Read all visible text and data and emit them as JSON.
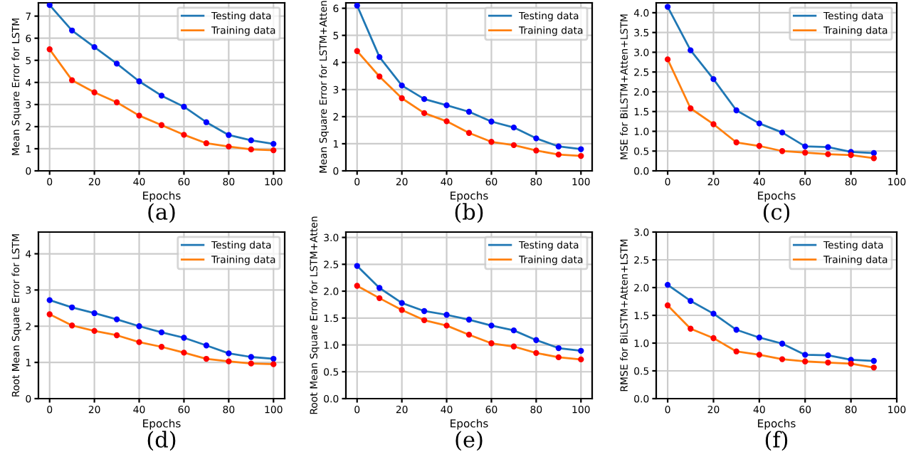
{
  "chart_data": [
    {
      "type": "line",
      "xlabel": "Epochs",
      "ylabel": "Mean Square Error for LSTM",
      "annotations": [
        "(a)"
      ],
      "x": [
        0,
        10,
        20,
        30,
        40,
        50,
        60,
        70,
        80,
        90,
        100
      ],
      "xlim": [
        -5,
        105
      ],
      "xticks": [
        0,
        20,
        40,
        60,
        80,
        100
      ],
      "ylim": [
        0,
        7.6
      ],
      "yticks": [
        0,
        1,
        2,
        3,
        4,
        5,
        6,
        7
      ],
      "grid": true,
      "legend": "top right",
      "marker": "circle",
      "series": [
        {
          "name": "Testing data",
          "color": "#1f77b4",
          "colors": [
            "#0000ff",
            "#0000ff",
            "#0000ff",
            "#0000ff",
            "#0000ff",
            "#0000ff",
            "#0000ff",
            "#0000ff",
            "#0000ff",
            "#0000ff",
            "#0000ff"
          ],
          "values": [
            7.5,
            6.35,
            5.6,
            4.85,
            4.05,
            3.4,
            2.9,
            2.2,
            1.62,
            1.38,
            1.22
          ]
        },
        {
          "name": "Training data",
          "color": "#ff7f0e",
          "colors": [
            "#ff0000",
            "#ff0000",
            "#ff0000",
            "#ff0000",
            "#ff0000",
            "#ff0000",
            "#ff0000",
            "#ff0000",
            "#ff0000",
            "#ff0000",
            "#ff0000"
          ],
          "values": [
            5.5,
            4.1,
            3.55,
            3.1,
            2.5,
            2.07,
            1.63,
            1.25,
            1.1,
            0.97,
            0.93
          ]
        }
      ]
    },
    {
      "type": "line",
      "xlabel": "Epochs",
      "ylabel": "Mean Square Error for LSTM+Atten",
      "annotations": [
        "(b)"
      ],
      "x": [
        0,
        10,
        20,
        30,
        40,
        50,
        60,
        70,
        80,
        90,
        100
      ],
      "xlim": [
        -5,
        105
      ],
      "xticks": [
        0,
        20,
        40,
        60,
        80,
        100
      ],
      "ylim": [
        0,
        6.2
      ],
      "yticks": [
        0,
        1,
        2,
        3,
        4,
        5,
        6
      ],
      "grid": true,
      "legend": "top right",
      "marker": "circle",
      "series": [
        {
          "name": "Testing data",
          "color": "#1f77b4",
          "colors": [
            "#0000ff",
            "#0000ff",
            "#0000ff",
            "#0000ff",
            "#0000ff",
            "#0000ff",
            "#0000ff",
            "#0000ff",
            "#0000ff",
            "#0000ff",
            "#0000ff"
          ],
          "values": [
            6.1,
            4.2,
            3.15,
            2.65,
            2.42,
            2.18,
            1.82,
            1.6,
            1.2,
            0.9,
            0.8
          ]
        },
        {
          "name": "Training data",
          "color": "#ff7f0e",
          "colors": [
            "#ff0000",
            "#ff0000",
            "#ff0000",
            "#ff0000",
            "#ff0000",
            "#ff0000",
            "#ff0000",
            "#ff0000",
            "#ff0000",
            "#ff0000",
            "#ff0000"
          ],
          "values": [
            4.42,
            3.48,
            2.68,
            2.13,
            1.83,
            1.4,
            1.07,
            0.95,
            0.75,
            0.6,
            0.55
          ]
        }
      ]
    },
    {
      "type": "line",
      "xlabel": "Epochs",
      "ylabel": "MSE for BiLSTM+Atten+LSTM",
      "annotations": [
        "(c)"
      ],
      "x": [
        0,
        10,
        20,
        30,
        40,
        50,
        60,
        70,
        80,
        90
      ],
      "xlim": [
        -5,
        100
      ],
      "xticks": [
        0,
        20,
        40,
        60,
        80,
        100
      ],
      "ylim": [
        0,
        4.25
      ],
      "yticks": [
        {
          "value": 0,
          "label": "0.0"
        },
        0.5,
        {
          "value": 1,
          "label": "1.0"
        },
        1.5,
        {
          "value": 2,
          "label": "2.0"
        },
        2.5,
        {
          "value": 3,
          "label": "3.0"
        },
        3.5,
        {
          "value": 4,
          "label": "4.0"
        }
      ],
      "grid": true,
      "legend": "top right",
      "marker": "circle",
      "series": [
        {
          "name": "Testing data",
          "color": "#1f77b4",
          "colors": [
            "#0000ff",
            "#0000ff",
            "#0000ff",
            "#0000ff",
            "#0000ff",
            "#0000ff",
            "#0000ff",
            "#0000ff",
            "#0000ff",
            "#0000ff"
          ],
          "values": [
            4.15,
            3.05,
            2.32,
            1.53,
            1.2,
            0.97,
            0.62,
            0.6,
            0.48,
            0.45
          ]
        },
        {
          "name": "Training data",
          "color": "#ff7f0e",
          "colors": [
            "#ff0000",
            "#ff0000",
            "#ff0000",
            "#ff0000",
            "#ff0000",
            "#ff0000",
            "#ff0000",
            "#ff0000",
            "#ff0000",
            "#ff0000"
          ],
          "values": [
            2.82,
            1.58,
            1.18,
            0.72,
            0.63,
            0.5,
            0.46,
            0.42,
            0.4,
            0.32
          ]
        }
      ]
    },
    {
      "type": "line",
      "xlabel": "Epochs",
      "ylabel": "Root Mean Square Error for LSTM",
      "annotations": [
        "(d)"
      ],
      "x": [
        0,
        10,
        20,
        30,
        40,
        50,
        60,
        70,
        80,
        90,
        100
      ],
      "xlim": [
        -5,
        105
      ],
      "xticks": [
        0,
        20,
        40,
        60,
        80,
        100
      ],
      "ylim": [
        0,
        4.6
      ],
      "yticks": [
        0,
        1,
        2,
        3,
        4
      ],
      "grid": true,
      "legend": "top right",
      "marker": "circle",
      "series": [
        {
          "name": "Testing data",
          "color": "#1f77b4",
          "colors": [
            "#0000ff",
            "#0000ff",
            "#0000ff",
            "#0000ff",
            "#0000ff",
            "#0000ff",
            "#0000ff",
            "#0000ff",
            "#0000ff",
            "#0000ff",
            "#0000ff"
          ],
          "values": [
            2.72,
            2.52,
            2.36,
            2.19,
            2.0,
            1.83,
            1.68,
            1.47,
            1.25,
            1.15,
            1.1
          ]
        },
        {
          "name": "Training data",
          "color": "#ff7f0e",
          "colors": [
            "#ff0000",
            "#ff0000",
            "#ff0000",
            "#ff0000",
            "#ff0000",
            "#ff0000",
            "#ff0000",
            "#ff0000",
            "#ff0000",
            "#ff0000",
            "#ff0000"
          ],
          "values": [
            2.33,
            2.02,
            1.87,
            1.75,
            1.56,
            1.43,
            1.27,
            1.1,
            1.03,
            0.97,
            0.95
          ]
        }
      ]
    },
    {
      "type": "line",
      "xlabel": "Epochs",
      "ylabel": "Root Mean Square Error for LSTM+Atten",
      "annotations": [
        "(e)"
      ],
      "x": [
        0,
        10,
        20,
        30,
        40,
        50,
        60,
        70,
        80,
        90,
        100
      ],
      "xlim": [
        -5,
        105
      ],
      "xticks": [
        0,
        20,
        40,
        60,
        80,
        100
      ],
      "ylim": [
        0,
        3.1
      ],
      "yticks": [
        {
          "value": 0,
          "label": "0.0"
        },
        0.5,
        {
          "value": 1,
          "label": "1.0"
        },
        1.5,
        {
          "value": 2,
          "label": "2.0"
        },
        2.5,
        {
          "value": 3,
          "label": "3.0"
        }
      ],
      "grid": true,
      "legend": "top right",
      "marker": "circle",
      "series": [
        {
          "name": "Testing data",
          "color": "#1f77b4",
          "colors": [
            "#0000ff",
            "#0000ff",
            "#0000ff",
            "#0000ff",
            "#0000ff",
            "#0000ff",
            "#0000ff",
            "#0000ff",
            "#0000ff",
            "#0000ff",
            "#0000ff"
          ],
          "values": [
            2.47,
            2.06,
            1.78,
            1.63,
            1.56,
            1.47,
            1.36,
            1.27,
            1.09,
            0.94,
            0.89
          ]
        },
        {
          "name": "Training data",
          "color": "#ff7f0e",
          "colors": [
            "#ff0000",
            "#ff0000",
            "#ff0000",
            "#ff0000",
            "#ff0000",
            "#ff0000",
            "#ff0000",
            "#ff0000",
            "#ff0000",
            "#ff0000",
            "#ff0000"
          ],
          "values": [
            2.1,
            1.87,
            1.65,
            1.46,
            1.36,
            1.19,
            1.03,
            0.97,
            0.85,
            0.77,
            0.73
          ]
        }
      ]
    },
    {
      "type": "line",
      "xlabel": "Epochs",
      "ylabel": "RMSE for BiLSTM+Atten+LSTM",
      "annotations": [
        "(f)"
      ],
      "x": [
        0,
        10,
        20,
        30,
        40,
        50,
        60,
        70,
        80,
        90
      ],
      "xlim": [
        -5,
        100
      ],
      "xticks": [
        0,
        20,
        40,
        60,
        80,
        100
      ],
      "ylim": [
        0,
        3.0
      ],
      "yticks": [
        {
          "value": 0,
          "label": "0.0"
        },
        0.5,
        {
          "value": 1,
          "label": "1.0"
        },
        1.5,
        {
          "value": 2,
          "label": "2.0"
        },
        2.5,
        {
          "value": 3,
          "label": "3.0"
        }
      ],
      "grid": true,
      "legend": "top right",
      "marker": "circle",
      "series": [
        {
          "name": "Testing data",
          "color": "#1f77b4",
          "colors": [
            "#0000ff",
            "#0000ff",
            "#0000ff",
            "#0000ff",
            "#0000ff",
            "#0000ff",
            "#0000ff",
            "#0000ff",
            "#0000ff",
            "#0000ff"
          ],
          "values": [
            2.05,
            1.76,
            1.53,
            1.24,
            1.1,
            0.99,
            0.79,
            0.78,
            0.7,
            0.68
          ]
        },
        {
          "name": "Training data",
          "color": "#ff7f0e",
          "colors": [
            "#ff0000",
            "#ff0000",
            "#ff0000",
            "#ff0000",
            "#ff0000",
            "#ff0000",
            "#ff0000",
            "#ff0000",
            "#ff0000",
            "#ff0000"
          ],
          "values": [
            1.68,
            1.26,
            1.09,
            0.85,
            0.79,
            0.71,
            0.67,
            0.65,
            0.63,
            0.56
          ]
        }
      ]
    }
  ]
}
